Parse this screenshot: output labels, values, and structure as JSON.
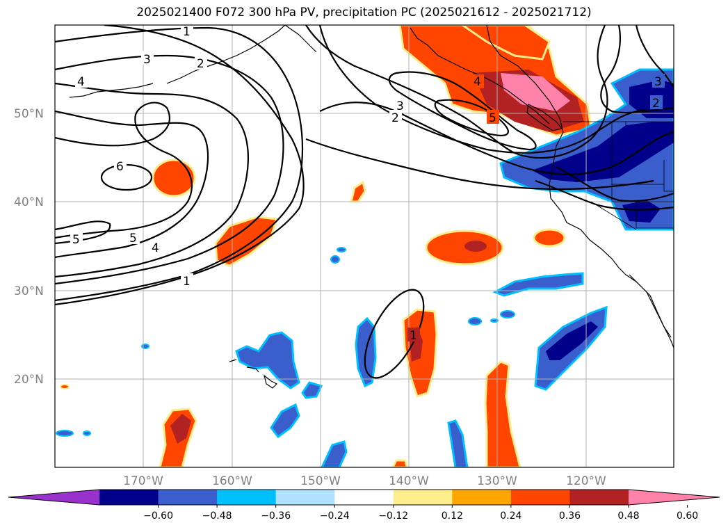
{
  "title": "2025021400 F072 300 hPa PV, precipitation PC (2025021612 - 2025021712)",
  "map": {
    "lat_labels": [
      "50°N",
      "40°N",
      "30°N",
      "20°N"
    ],
    "lon_labels": [
      "170°W",
      "160°W",
      "150°W",
      "140°W",
      "130°W",
      "120°W"
    ],
    "pv_contour_labels": [
      "1",
      "3",
      "2",
      "4",
      "6",
      "5",
      "5",
      "4",
      "1",
      "3",
      "2",
      "4",
      "5",
      "3",
      "2",
      "1"
    ]
  },
  "colorbar": {
    "ticks": [
      "−0.60",
      "−0.48",
      "−0.36",
      "−0.24",
      "−0.12",
      "0.12",
      "0.24",
      "0.36",
      "0.48",
      "0.60"
    ],
    "colors": [
      "#9932cc",
      "#00008b",
      "#3a5fcd",
      "#00bfff",
      "#b0e2ff",
      "#ffffff",
      "#ffec8b",
      "#ffa500",
      "#ff4500",
      "#b22222",
      "#ff82ab"
    ]
  },
  "colors": {
    "strong_negative": "#00008b",
    "negative": "#3a5fcd",
    "weak_negative": "#00bfff",
    "weak_positive": "#ffec8b",
    "positive": "#ff4500",
    "strong_positive": "#b22222",
    "very_strong_positive": "#ff82ab"
  }
}
